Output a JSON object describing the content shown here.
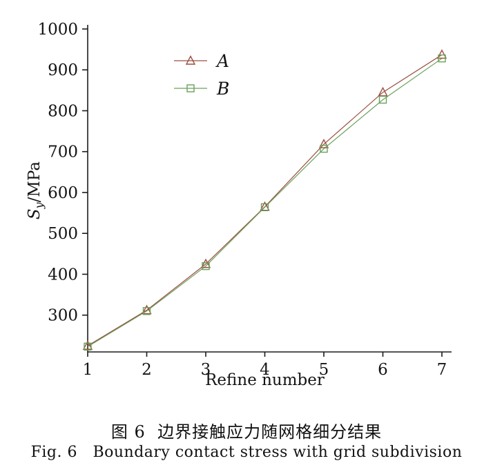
{
  "chart_data": {
    "type": "line",
    "x": [
      1,
      2,
      3,
      4,
      5,
      6,
      7
    ],
    "series": [
      {
        "name": "A",
        "marker": "triangle",
        "color": "#9b4d3f",
        "values": [
          225,
          312,
          425,
          565,
          718,
          845,
          937
        ]
      },
      {
        "name": "B",
        "marker": "square",
        "color": "#6aa05a",
        "values": [
          223,
          310,
          420,
          564,
          707,
          827,
          928
        ]
      }
    ],
    "xlabel": "Refine number",
    "ylabel": "Sy/MPa",
    "ylabel_parts": {
      "main": "S",
      "sub": "y",
      "unit": "/MPa"
    },
    "xlim": [
      1,
      7
    ],
    "ylim": [
      210,
      1000
    ],
    "xticks": [
      1,
      2,
      3,
      4,
      5,
      6,
      7
    ],
    "yticks": [
      300,
      400,
      500,
      600,
      700,
      800,
      900,
      1000
    ],
    "grid": false,
    "legend_position": "upper-left-inside",
    "axis_color": "#1a1a1a"
  },
  "captions": {
    "cn": "图 6  边界接触应力随网格细分结果",
    "en": "Fig. 6   Boundary contact stress with grid subdivision"
  }
}
